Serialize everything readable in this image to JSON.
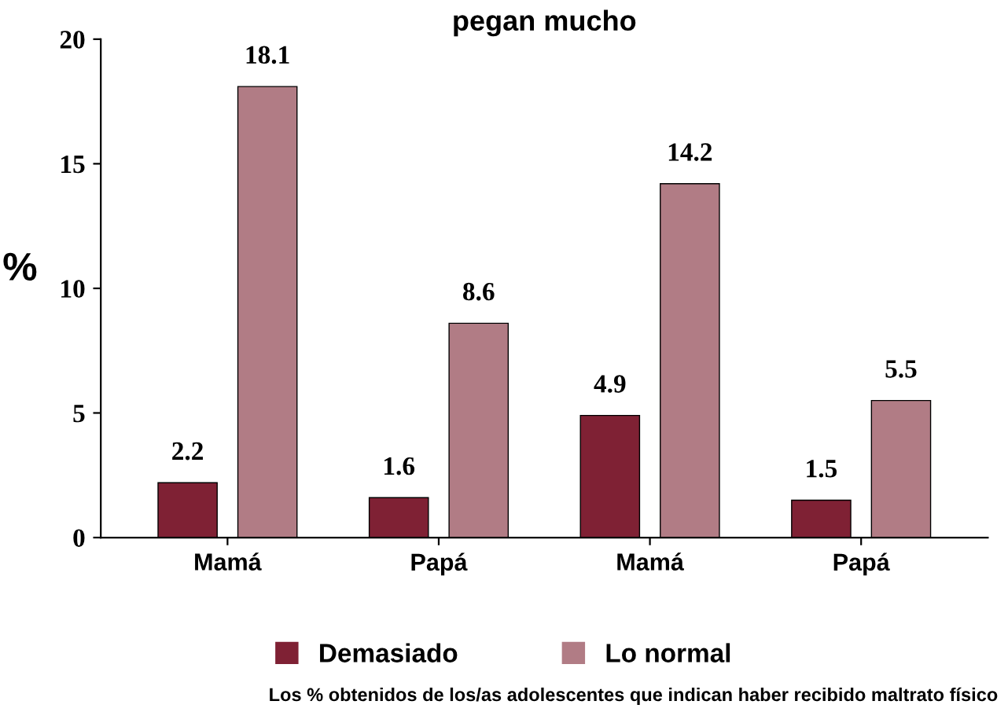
{
  "chart_data": {
    "type": "bar",
    "title": "pegan mucho",
    "ylabel": "%",
    "categories": [
      "Mamá",
      "Papá",
      "Mamá",
      "Papá"
    ],
    "series": [
      {
        "name": "Demasiado",
        "color": "#7f2134",
        "values": [
          2.2,
          1.6,
          4.9,
          1.5
        ]
      },
      {
        "name": "Lo normal",
        "color": "#b17c85",
        "values": [
          18.1,
          8.6,
          14.2,
          5.5
        ]
      }
    ],
    "ylim": [
      0,
      20
    ],
    "yticks": [
      0,
      5,
      10,
      15,
      20
    ],
    "data_labels": true,
    "grid": false,
    "legend": "bottom",
    "annotations": [
      "Los % obtenidos de los/as adolescentes que indican haber recibido maltrato físico"
    ]
  }
}
